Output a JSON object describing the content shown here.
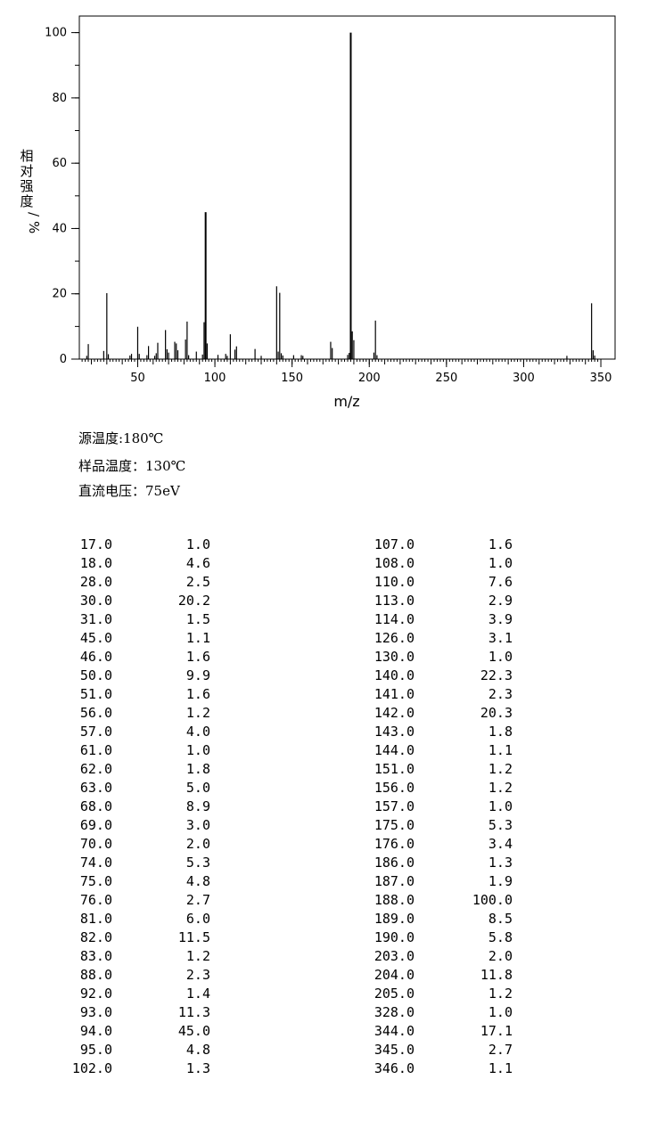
{
  "chart_data": {
    "type": "bar",
    "xlabel": "m/z",
    "ylabel": "相对强度/%",
    "xlim": [
      10,
      350
    ],
    "ylim": [
      0,
      100
    ],
    "x_ticks": [
      50,
      100,
      150,
      200,
      250,
      300,
      350
    ],
    "y_ticks": [
      0,
      20,
      40,
      60,
      80,
      100
    ],
    "grid": false,
    "peaks": [
      [
        17,
        1.0
      ],
      [
        18,
        4.6
      ],
      [
        28,
        2.5
      ],
      [
        30,
        20.2
      ],
      [
        31,
        1.5
      ],
      [
        45,
        1.1
      ],
      [
        46,
        1.6
      ],
      [
        50,
        9.9
      ],
      [
        51,
        1.6
      ],
      [
        56,
        1.2
      ],
      [
        57,
        4.0
      ],
      [
        61,
        1.0
      ],
      [
        62,
        1.8
      ],
      [
        63,
        5.0
      ],
      [
        68,
        8.9
      ],
      [
        69,
        3.0
      ],
      [
        70,
        2.0
      ],
      [
        74,
        5.3
      ],
      [
        75,
        4.8
      ],
      [
        76,
        2.7
      ],
      [
        81,
        6.0
      ],
      [
        82,
        11.5
      ],
      [
        83,
        1.2
      ],
      [
        88,
        2.3
      ],
      [
        92,
        1.4
      ],
      [
        93,
        11.3
      ],
      [
        94,
        45.0
      ],
      [
        95,
        4.8
      ],
      [
        102,
        1.3
      ],
      [
        107,
        1.6
      ],
      [
        108,
        1.0
      ],
      [
        110,
        7.6
      ],
      [
        113,
        2.9
      ],
      [
        114,
        3.9
      ],
      [
        126,
        3.1
      ],
      [
        130,
        1.0
      ],
      [
        140,
        22.3
      ],
      [
        141,
        2.3
      ],
      [
        142,
        20.3
      ],
      [
        143,
        1.8
      ],
      [
        144,
        1.1
      ],
      [
        151,
        1.2
      ],
      [
        156,
        1.2
      ],
      [
        157,
        1.0
      ],
      [
        175,
        5.3
      ],
      [
        176,
        3.4
      ],
      [
        186,
        1.3
      ],
      [
        187,
        1.9
      ],
      [
        188,
        100.0
      ],
      [
        189,
        8.5
      ],
      [
        190,
        5.8
      ],
      [
        203,
        2.0
      ],
      [
        204,
        11.8
      ],
      [
        205,
        1.2
      ],
      [
        328,
        1.0
      ],
      [
        344,
        17.1
      ],
      [
        345,
        2.7
      ],
      [
        346,
        1.1
      ]
    ]
  },
  "conditions": {
    "source_temp": "源温度:180℃",
    "sample_temp": "样品温度：130℃",
    "voltage": "直流电压：75eV"
  },
  "table": {
    "left": [
      [
        "17.0",
        "1.0"
      ],
      [
        "18.0",
        "4.6"
      ],
      [
        "28.0",
        "2.5"
      ],
      [
        "30.0",
        "20.2"
      ],
      [
        "31.0",
        "1.5"
      ],
      [
        "45.0",
        "1.1"
      ],
      [
        "46.0",
        "1.6"
      ],
      [
        "50.0",
        "9.9"
      ],
      [
        "51.0",
        "1.6"
      ],
      [
        "56.0",
        "1.2"
      ],
      [
        "57.0",
        "4.0"
      ],
      [
        "61.0",
        "1.0"
      ],
      [
        "62.0",
        "1.8"
      ],
      [
        "63.0",
        "5.0"
      ],
      [
        "68.0",
        "8.9"
      ],
      [
        "69.0",
        "3.0"
      ],
      [
        "70.0",
        "2.0"
      ],
      [
        "74.0",
        "5.3"
      ],
      [
        "75.0",
        "4.8"
      ],
      [
        "76.0",
        "2.7"
      ],
      [
        "81.0",
        "6.0"
      ],
      [
        "82.0",
        "11.5"
      ],
      [
        "83.0",
        "1.2"
      ],
      [
        "88.0",
        "2.3"
      ],
      [
        "92.0",
        "1.4"
      ],
      [
        "93.0",
        "11.3"
      ],
      [
        "94.0",
        "45.0"
      ],
      [
        "95.0",
        "4.8"
      ],
      [
        "102.0",
        "1.3"
      ]
    ],
    "right": [
      [
        "107.0",
        "1.6"
      ],
      [
        "108.0",
        "1.0"
      ],
      [
        "110.0",
        "7.6"
      ],
      [
        "113.0",
        "2.9"
      ],
      [
        "114.0",
        "3.9"
      ],
      [
        "126.0",
        "3.1"
      ],
      [
        "130.0",
        "1.0"
      ],
      [
        "140.0",
        "22.3"
      ],
      [
        "141.0",
        "2.3"
      ],
      [
        "142.0",
        "20.3"
      ],
      [
        "143.0",
        "1.8"
      ],
      [
        "144.0",
        "1.1"
      ],
      [
        "151.0",
        "1.2"
      ],
      [
        "156.0",
        "1.2"
      ],
      [
        "157.0",
        "1.0"
      ],
      [
        "175.0",
        "5.3"
      ],
      [
        "176.0",
        "3.4"
      ],
      [
        "186.0",
        "1.3"
      ],
      [
        "187.0",
        "1.9"
      ],
      [
        "188.0",
        "100.0"
      ],
      [
        "189.0",
        "8.5"
      ],
      [
        "190.0",
        "5.8"
      ],
      [
        "203.0",
        "2.0"
      ],
      [
        "204.0",
        "11.8"
      ],
      [
        "205.0",
        "1.2"
      ],
      [
        "328.0",
        "1.0"
      ],
      [
        "344.0",
        "17.1"
      ],
      [
        "345.0",
        "2.7"
      ],
      [
        "346.0",
        "1.1"
      ]
    ]
  }
}
